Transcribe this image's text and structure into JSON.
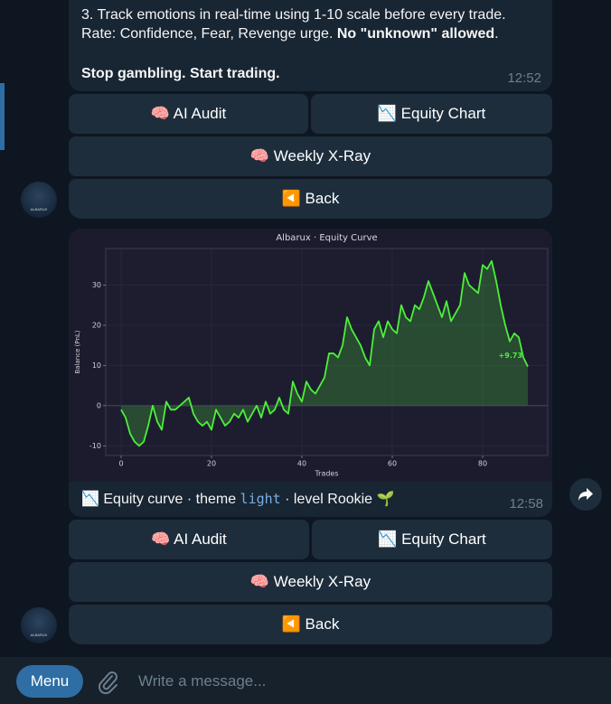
{
  "messages": [
    {
      "text": {
        "line1": "3. Track emotions in real-time using 1-10 scale before every trade.",
        "line2_prefix": "Rate: Confidence, Fear, Revenge urge. ",
        "line2_bold": "No \"unknown\" allowed",
        "line2_suffix": ".",
        "line3": "Stop gambling. Start trading."
      },
      "time": "12:52",
      "buttons": [
        [
          "🧠 AI Audit",
          "📉 Equity Chart"
        ],
        [
          "🧠 Weekly X-Ray"
        ],
        [
          "◀️ Back"
        ]
      ],
      "avatar": "ALBARUX"
    },
    {
      "chart_data": {
        "type": "line",
        "title": "Albarux · Equity Curve",
        "x_label": "Trades",
        "y_label": "Balance (PnL)",
        "x": [
          0,
          1,
          2,
          3,
          4,
          5,
          6,
          7,
          8,
          9,
          10,
          11,
          12,
          13,
          14,
          15,
          16,
          17,
          18,
          19,
          20,
          21,
          22,
          23,
          24,
          25,
          26,
          27,
          28,
          29,
          30,
          31,
          32,
          33,
          34,
          35,
          36,
          37,
          38,
          39,
          40,
          41,
          42,
          43,
          44,
          45,
          46,
          47,
          48,
          49,
          50,
          51,
          52,
          53,
          54,
          55,
          56,
          57,
          58,
          59,
          60,
          61,
          62,
          63,
          64,
          65,
          66,
          67,
          68,
          69,
          70,
          71,
          72,
          73,
          74,
          75,
          76,
          77,
          78,
          79,
          80,
          81,
          82,
          83,
          84,
          85,
          86,
          87,
          88,
          89,
          90
        ],
        "series": [
          {
            "name": "Equity",
            "color": "#4cf03a",
            "values": [
              -1,
              -3,
              -7,
              -9,
              -10,
              -9,
              -5,
              0,
              -4,
              -6,
              1,
              -1,
              -1,
              0,
              1,
              2,
              -2,
              -4,
              -5,
              -4,
              -6,
              -1,
              -3,
              -5,
              -4,
              -2,
              -3,
              -1,
              -4,
              -2,
              0,
              -3,
              1,
              -2,
              -1,
              2,
              -1,
              -2,
              6,
              3,
              1,
              6,
              4,
              3,
              5,
              7,
              13,
              13,
              12,
              15,
              22,
              19,
              17,
              15,
              12,
              10,
              19,
              21,
              17,
              21,
              19,
              18,
              25,
              22,
              21,
              25,
              24,
              27,
              31,
              28,
              25,
              22,
              26,
              21,
              23,
              25,
              33,
              30,
              29,
              28,
              35,
              34,
              36,
              31,
              25,
              20,
              16,
              18,
              17,
              12,
              9.73
            ]
          }
        ],
        "annotation": "+9.73",
        "xlim": [
          -3.4,
          94.4
        ],
        "ylim": [
          -12.4,
          39.1
        ],
        "xticks": [
          0,
          20,
          40,
          60,
          80
        ],
        "yticks": [
          -10,
          0,
          10,
          20,
          30
        ],
        "grid": true
      },
      "caption": {
        "prefix": "📉 Equity curve · theme ",
        "code": "light",
        "suffix": " · level Rookie 🌱"
      },
      "time": "12:58",
      "buttons": [
        [
          "🧠 AI Audit",
          "📉 Equity Chart"
        ],
        [
          "🧠 Weekly X-Ray"
        ],
        [
          "◀️ Back"
        ]
      ],
      "avatar": "ALBARUX"
    }
  ],
  "input": {
    "menu": "Menu",
    "placeholder": "Write a message..."
  }
}
